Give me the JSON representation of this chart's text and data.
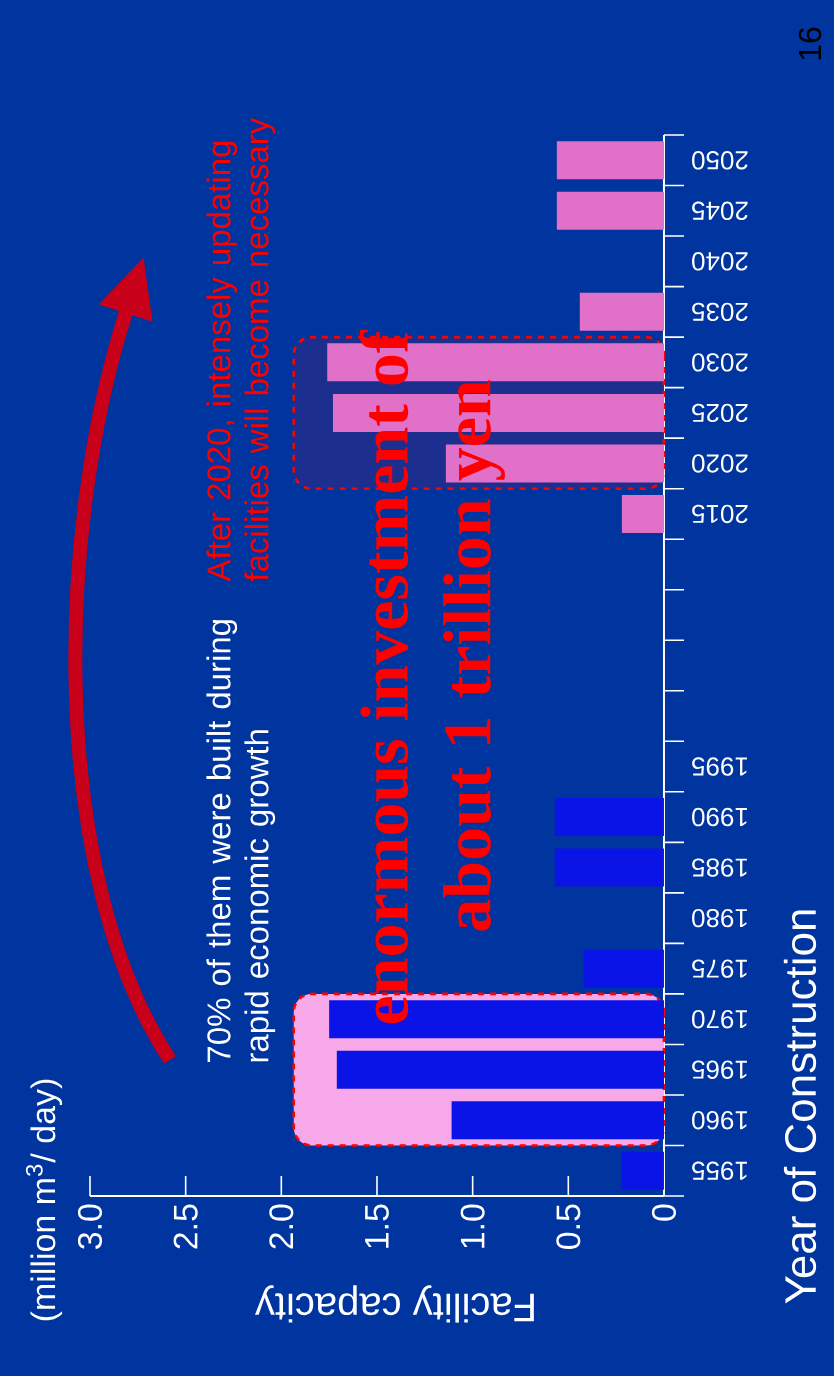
{
  "chart_data": {
    "type": "bar",
    "orientation": "horizontal",
    "xlabel": "Facility capacity",
    "ylabel": "Year of Construction",
    "categories": [
      "2050",
      "2045",
      "2040",
      "2035",
      "2030",
      "2025",
      "2020",
      "2015",
      null,
      null,
      null,
      null,
      "1995",
      "1990",
      "1985",
      "1980",
      "1975",
      "1970",
      "1965",
      "1960",
      "1955"
    ],
    "values": [
      0.56,
      0.56,
      null,
      0.44,
      1.76,
      1.73,
      1.14,
      0.22,
      null,
      null,
      null,
      null,
      null,
      0.57,
      0.57,
      null,
      0.42,
      1.75,
      1.71,
      1.11,
      0.22
    ],
    "colors": [
      "#e070c8",
      "#e070c8",
      "#e070c8",
      "#e070c8",
      "#e070c8",
      "#e070c8",
      "#e070c8",
      "#e070c8",
      "#0a14e6",
      "#0a14e6",
      "#0a14e6",
      "#0a14e6",
      "#0a14e6",
      "#0a14e6",
      "#0a14e6",
      "#0a14e6",
      "#0a14e6",
      "#0a14e6",
      "#0a14e6",
      "#0a14e6",
      "#0a14e6"
    ],
    "xlim": [
      3,
      0
    ],
    "xticks": [
      0,
      0.5,
      {
        "value": 1,
        "label": "1.0"
      },
      1.5,
      {
        "value": 2,
        "label": "2.0"
      },
      2.5,
      {
        "value": 3,
        "label": "3.0"
      }
    ],
    "bands": [
      {
        "axis": "y",
        "from": "1970",
        "to": "1960",
        "color": "#f7a8e8"
      },
      {
        "axis": "y",
        "from": "2030",
        "to": "2020",
        "color": "#1c2f8e"
      }
    ],
    "annotations": [
      "(million m$^{3}$/ day)",
      "70% of them were built during rapid economic growth",
      "After 2020, intensely updating facilities will become necessary",
      "enormous investment of",
      "about 1 trillion yen",
      "16"
    ]
  }
}
